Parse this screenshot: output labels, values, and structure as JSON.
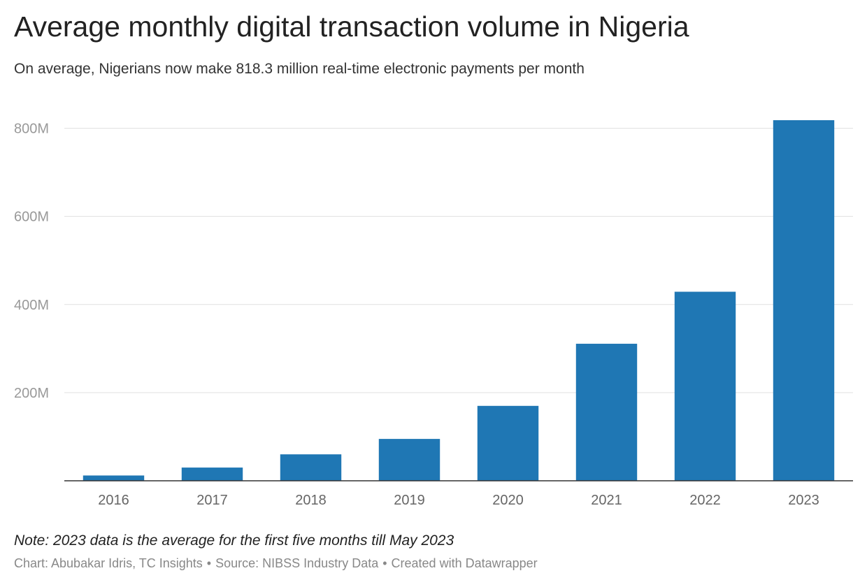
{
  "header": {
    "title": "Average monthly digital transaction volume in Nigeria",
    "subtitle": "On average, Nigerians now make 818.3 million real-time electronic payments per month"
  },
  "footer": {
    "note": "Note: 2023 data is the average for the first five months till May 2023",
    "credit_chart": "Chart: Abubakar Idris, TC Insights",
    "separator": "•",
    "credit_source": "Source: NIBSS Industry Data",
    "credit_tool": "Created with Datawrapper"
  },
  "colors": {
    "bar": "#1f77b4",
    "gridline": "#e0e0e0",
    "axis": "#333333",
    "tick_label": "#999999",
    "category_label": "#666666"
  },
  "chart_data": {
    "type": "bar",
    "title": "Average monthly digital transaction volume in Nigeria",
    "subtitle": "On average, Nigerians now make 818.3 million real-time electronic payments per month",
    "xlabel": "",
    "ylabel": "",
    "categories": [
      "2016",
      "2017",
      "2018",
      "2019",
      "2020",
      "2021",
      "2022",
      "2023"
    ],
    "values": [
      12000000,
      30000000,
      60000000,
      95000000,
      170000000,
      311000000,
      429000000,
      818300000
    ],
    "ylim": [
      0,
      818300000
    ],
    "yticks": [
      200000000,
      400000000,
      600000000,
      800000000
    ],
    "ytick_labels": [
      "200M",
      "400M",
      "600M",
      "800M"
    ],
    "grid": true,
    "legend": "none"
  }
}
